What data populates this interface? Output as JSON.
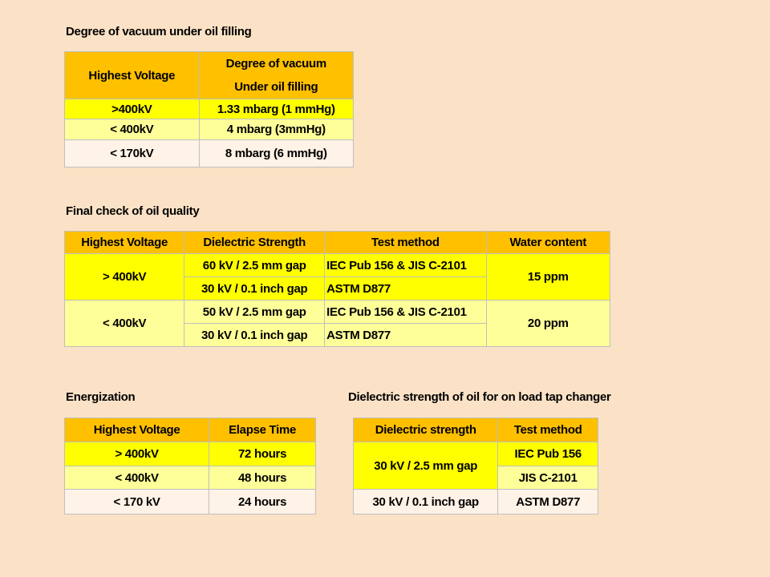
{
  "section1": {
    "title": "Degree of vacuum under oil filling",
    "headers": [
      "Highest Voltage",
      "Degree of vacuum",
      "Under oil filling"
    ],
    "rows": [
      [
        ">400kV",
        "1.33 mbarg (1 mmHg)"
      ],
      [
        "< 400kV",
        "4 mbarg (3mmHg)"
      ],
      [
        "< 170kV",
        "8 mbarg (6 mmHg)"
      ]
    ]
  },
  "section2": {
    "title": "Final check of oil quality",
    "headers": [
      "Highest Voltage",
      "Dielectric Strength",
      "Test method",
      "Water content"
    ],
    "groups": [
      {
        "voltage": "> 400kV",
        "rows": [
          [
            "60 kV / 2.5 mm gap",
            "IEC Pub 156 & JIS C-2101"
          ],
          [
            "30 kV / 0.1 inch gap",
            "ASTM D877"
          ]
        ],
        "water": "15 ppm"
      },
      {
        "voltage": "< 400kV",
        "rows": [
          [
            "50 kV / 2.5 mm gap",
            "IEC Pub 156 & JIS C-2101"
          ],
          [
            "30 kV / 0.1 inch gap",
            "ASTM D877"
          ]
        ],
        "water": "20 ppm"
      }
    ]
  },
  "section3": {
    "title": "Energization",
    "headers": [
      "Highest Voltage",
      "Elapse Time"
    ],
    "rows": [
      [
        "> 400kV",
        "72 hours"
      ],
      [
        "< 400kV",
        "48 hours"
      ],
      [
        "< 170 kV",
        "24 hours"
      ]
    ]
  },
  "section4": {
    "title": "Dielectric strength of oil for on load tap changer",
    "headers": [
      "Dielectric strength",
      "Test method"
    ],
    "group1": {
      "strength": "30 kV / 2.5 mm gap",
      "methods": [
        "IEC Pub 156",
        "JIS C-2101"
      ]
    },
    "row2": [
      "30 kV / 0.1 inch gap",
      "ASTM D877"
    ]
  },
  "colors": {
    "background": "#fbe2c6",
    "header": "#ffc000",
    "row_bright": "#ffff00",
    "row_light": "#ffff99",
    "row_white": "#fff2e6"
  }
}
